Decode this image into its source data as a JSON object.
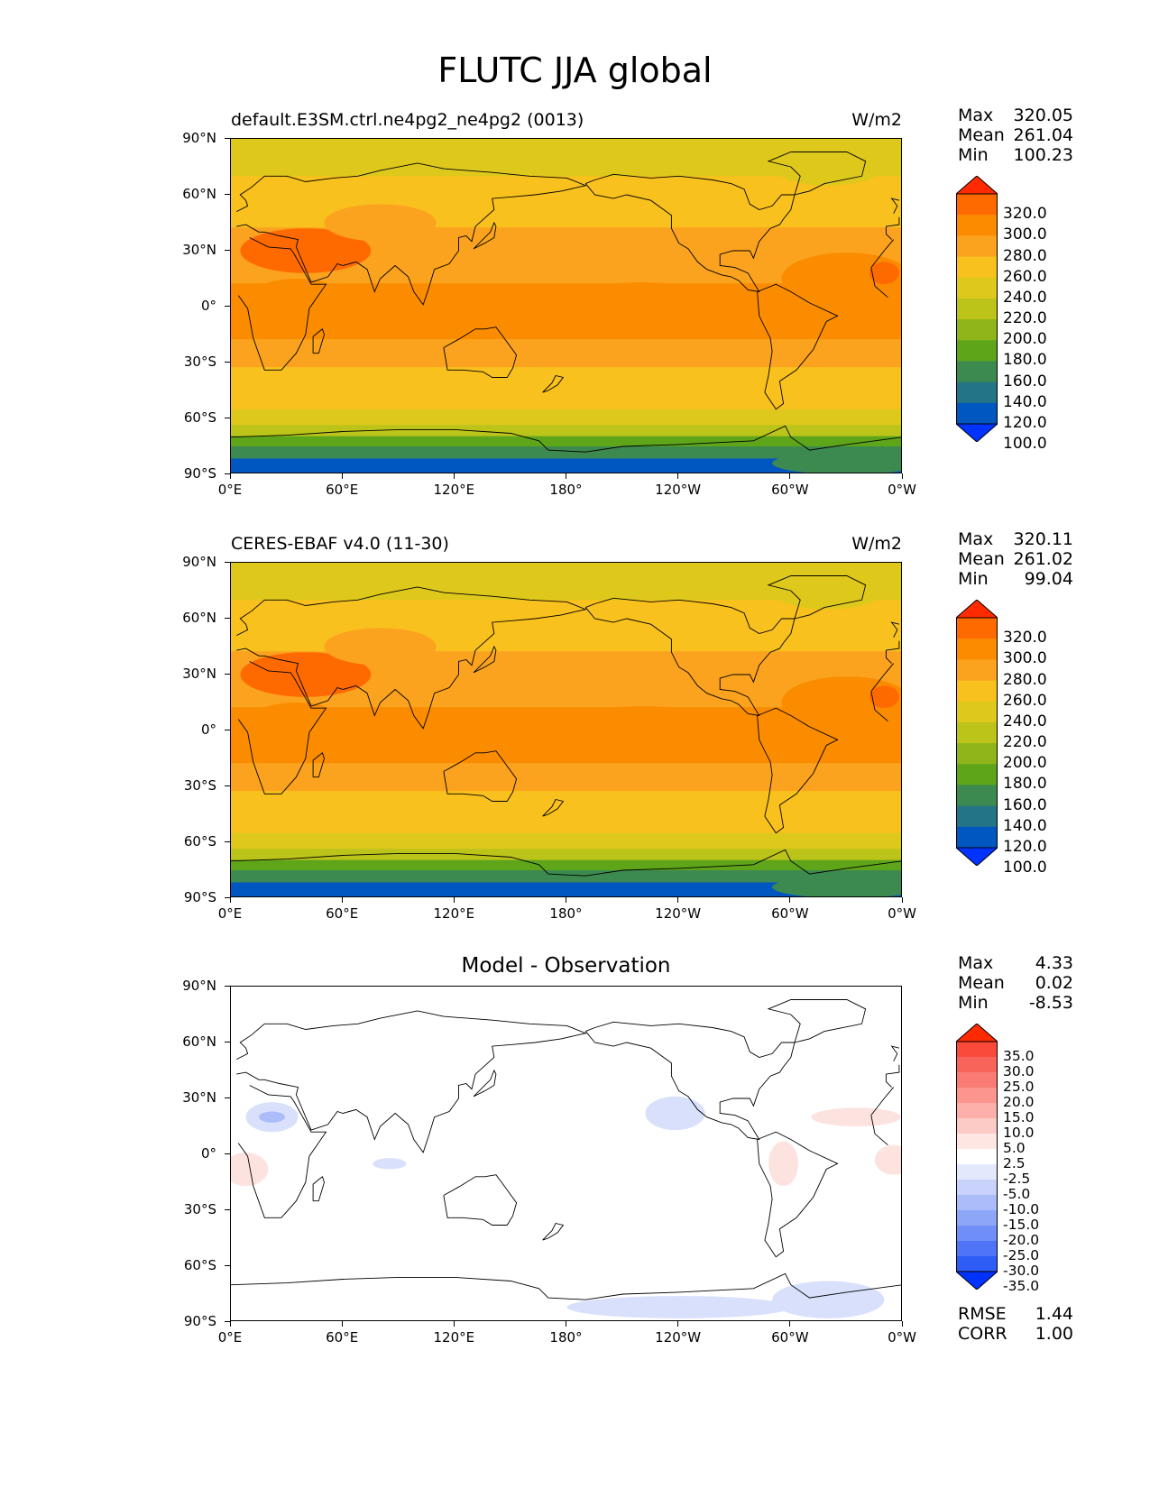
{
  "figure": {
    "title": "FLUTC JJA global"
  },
  "axes": {
    "lat_ticks": [
      "90°N",
      "60°N",
      "30°N",
      "0°",
      "30°S",
      "60°S",
      "90°S"
    ],
    "lon_ticks": [
      "0°E",
      "60°E",
      "120°E",
      "180°",
      "120°W",
      "60°W",
      "0°W"
    ],
    "lat_range": [
      -90,
      90
    ],
    "lon_range": [
      0,
      360
    ]
  },
  "panels": [
    {
      "id": "model",
      "title": "default.E3SM.ctrl.ne4pg2_ne4pg2 (0013)",
      "units": "W/m2",
      "stats": [
        {
          "label": "Max",
          "value": "320.05"
        },
        {
          "label": "Mean",
          "value": "261.04"
        },
        {
          "label": "Min",
          "value": "100.23"
        }
      ]
    },
    {
      "id": "obs",
      "title": "CERES-EBAF v4.0 (11-30)",
      "units": "W/m2",
      "stats": [
        {
          "label": "Max",
          "value": "320.11"
        },
        {
          "label": "Mean",
          "value": "261.02"
        },
        {
          "label": "Min",
          "value": "99.04"
        }
      ]
    },
    {
      "id": "diff",
      "title": "Model - Observation",
      "units": "",
      "stats": [
        {
          "label": "Max",
          "value": "4.33"
        },
        {
          "label": "Mean",
          "value": "0.02"
        },
        {
          "label": "Min",
          "value": "-8.53"
        }
      ],
      "metrics": [
        {
          "label": "RMSE",
          "value": "1.44"
        },
        {
          "label": "CORR",
          "value": "1.00"
        }
      ]
    }
  ],
  "colorbars": {
    "field": {
      "labels": [
        "320.0",
        "300.0",
        "280.0",
        "260.0",
        "240.0",
        "220.0",
        "200.0",
        "180.0",
        "160.0",
        "140.0",
        "120.0",
        "100.0"
      ],
      "colors": [
        "#ff2a00",
        "#ff6a00",
        "#fb8c00",
        "#fba31e",
        "#f9c11d",
        "#dfc81c",
        "#bcc41a",
        "#8fb51a",
        "#5ea51a",
        "#3c8a50",
        "#237585",
        "#0057c0",
        "#0033ff"
      ]
    },
    "diff": {
      "labels": [
        "35.0",
        "30.0",
        "25.0",
        "20.0",
        "15.0",
        "10.0",
        "5.0",
        "2.5",
        "-2.5",
        "-5.0",
        "-10.0",
        "-15.0",
        "-20.0",
        "-25.0",
        "-30.0",
        "-35.0"
      ],
      "colors": [
        "#ff2a00",
        "#f94a3c",
        "#f9645a",
        "#fa7b74",
        "#fb958d",
        "#fcb0a9",
        "#fdcbc5",
        "#fee6e2",
        "#ffffff",
        "#e3e8fd",
        "#c8d2fb",
        "#aabcfa",
        "#8da6f8",
        "#6f8ef7",
        "#4f74f7",
        "#2e5cf7",
        "#0033ff"
      ]
    }
  },
  "chart_data": [
    {
      "type": "heatmap",
      "title": "default.E3SM.ctrl.ne4pg2_ne4pg2 (0013)",
      "units": "W/m2",
      "levels": [
        100,
        120,
        140,
        160,
        180,
        200,
        220,
        240,
        260,
        280,
        300,
        320
      ],
      "max": 320.05,
      "mean": 261.04,
      "min": 100.23,
      "zonal_pattern_by_lat": {
        "lat": [
          85,
          75,
          65,
          50,
          35,
          20,
          5,
          -10,
          -25,
          -40,
          -50,
          -60,
          -67,
          -72,
          -78,
          -85
        ],
        "value": [
          225,
          235,
          240,
          250,
          265,
          275,
          285,
          285,
          275,
          255,
          240,
          225,
          200,
          170,
          140,
          110
        ]
      }
    },
    {
      "type": "heatmap",
      "title": "CERES-EBAF v4.0 (11-30)",
      "units": "W/m2",
      "levels": [
        100,
        120,
        140,
        160,
        180,
        200,
        220,
        240,
        260,
        280,
        300,
        320
      ],
      "max": 320.11,
      "mean": 261.02,
      "min": 99.04,
      "zonal_pattern_by_lat": {
        "lat": [
          85,
          75,
          65,
          50,
          35,
          20,
          5,
          -10,
          -25,
          -40,
          -50,
          -60,
          -67,
          -72,
          -78,
          -85
        ],
        "value": [
          225,
          235,
          240,
          250,
          265,
          275,
          285,
          285,
          275,
          255,
          240,
          225,
          200,
          170,
          140,
          110
        ]
      }
    },
    {
      "type": "heatmap",
      "title": "Model - Observation",
      "levels": [
        -35,
        -30,
        -25,
        -20,
        -15,
        -10,
        -5,
        -2.5,
        2.5,
        5,
        10,
        15,
        20,
        25,
        30,
        35
      ],
      "max": 4.33,
      "mean": 0.02,
      "min": -8.53,
      "rmse": 1.44,
      "corr": 1.0
    }
  ]
}
